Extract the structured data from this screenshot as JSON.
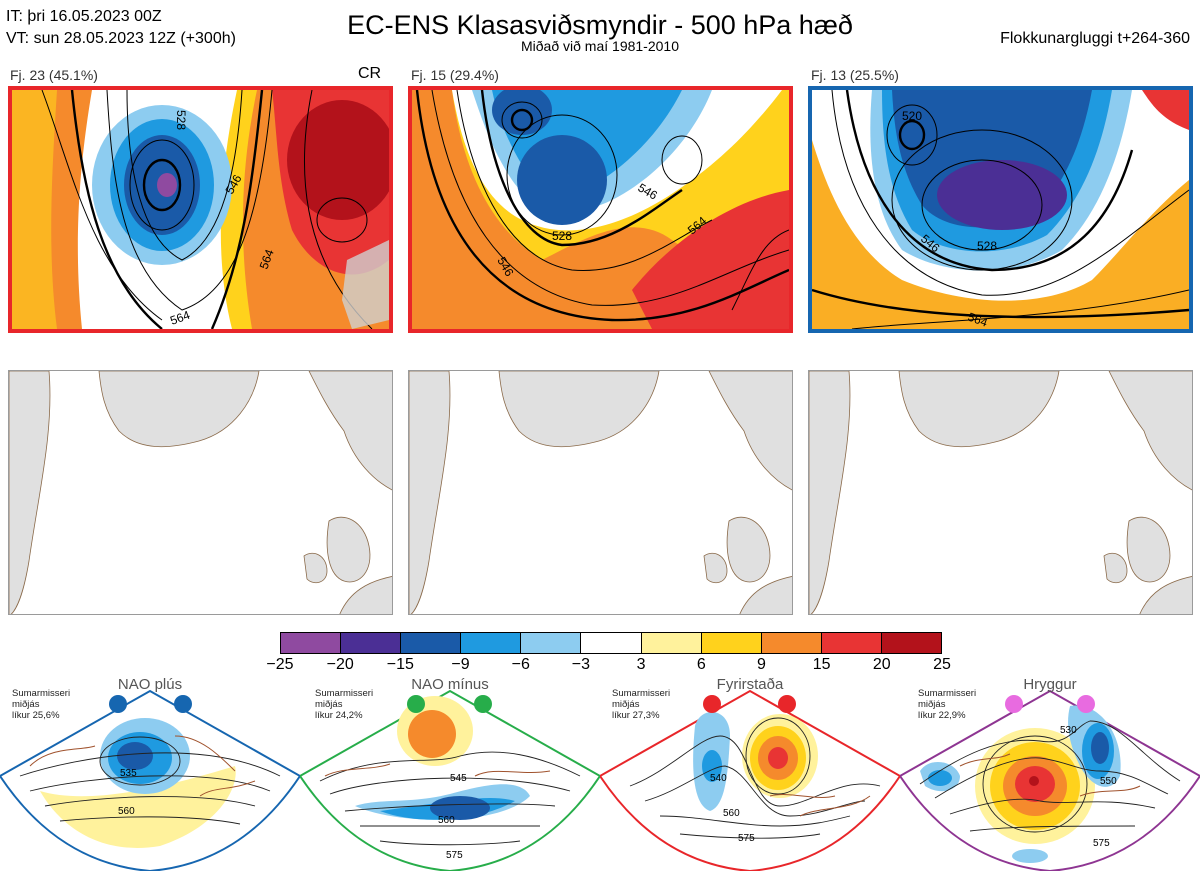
{
  "header": {
    "init_time": "IT: þri 16.05.2023 00Z",
    "valid_time": "VT: sun 28.05.2023 12Z  (+300h)",
    "title": "EC-ENS Klasasviðsmyndir - 500 hPa hæð",
    "subtitle": "Miðað við maí 1981-2010",
    "window": "Flokkunargluggi t+264-360"
  },
  "clusters": [
    {
      "label": "Fj. 23 (45.1%)",
      "tag": "CR",
      "border_color": "#e8262a"
    },
    {
      "label": "Fj. 15 (29.4%)",
      "tag": "",
      "border_color": "#e8262a"
    },
    {
      "label": "Fj. 13 (25.5%)",
      "tag": "",
      "border_color": "#1666b0"
    }
  ],
  "contour_labels": [
    "528",
    "546",
    "564",
    "564",
    "546",
    "528",
    "546",
    "564",
    "520",
    "528",
    "546",
    "564"
  ],
  "colorbar": {
    "ticks": [
      "−25",
      "−20",
      "−15",
      "−9",
      "−6",
      "−3",
      "3",
      "6",
      "9",
      "15",
      "20",
      "25"
    ],
    "colors": [
      "#8f4aa0",
      "#4b2f95",
      "#1a5aa8",
      "#1f9ae0",
      "#8dccf0",
      "#ffffff",
      "#fff29c",
      "#ffd21c",
      "#f58a2c",
      "#e83434",
      "#b3121b"
    ]
  },
  "regimes": [
    {
      "name": "NAO plús",
      "season": "Sumarmisseri",
      "season2": "miðjás",
      "prob": "líkur 25,6%",
      "color": "#1666b0",
      "contours": [
        "535",
        "560"
      ]
    },
    {
      "name": "NAO mínus",
      "season": "Sumarmisseri",
      "season2": "miðjás",
      "prob": "líkur 24,2%",
      "color": "#27ad4a",
      "contours": [
        "545",
        "560",
        "575"
      ]
    },
    {
      "name": "Fyrirstaða",
      "season": "Sumarmisseri",
      "season2": "miðjás",
      "prob": "líkur 27,3%",
      "color": "#e8262a",
      "contours": [
        "540",
        "560",
        "575"
      ]
    },
    {
      "name": "Hryggur",
      "season": "Sumarmisseri",
      "season2": "miðjás",
      "prob": "líkur 22,9%",
      "color": "#8e3592",
      "contours": [
        "530",
        "550",
        "575"
      ]
    }
  ]
}
